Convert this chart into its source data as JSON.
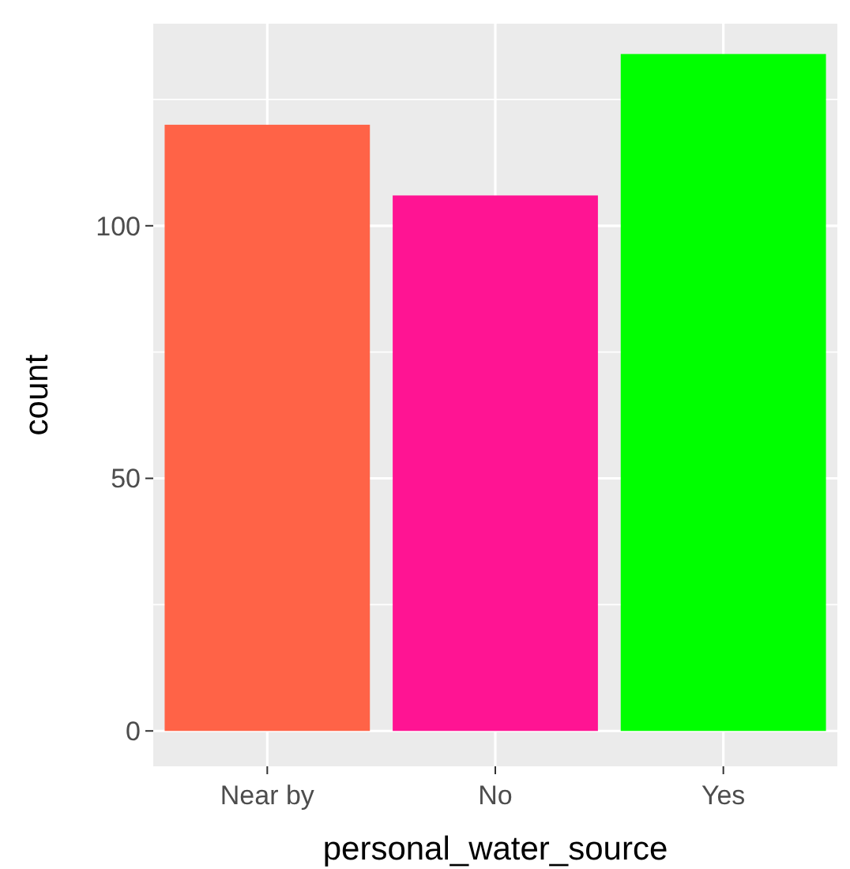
{
  "chart_data": {
    "type": "bar",
    "xlabel": "personal_water_source",
    "ylabel": "count",
    "categories": [
      "Near by",
      "No",
      "Yes"
    ],
    "values": [
      120,
      106,
      134
    ],
    "colors": [
      "#ff6347",
      "#ff1493",
      "#00ff00"
    ],
    "ylim": [
      -7,
      140
    ],
    "yticks": [
      0,
      50,
      100
    ],
    "grid": true
  }
}
